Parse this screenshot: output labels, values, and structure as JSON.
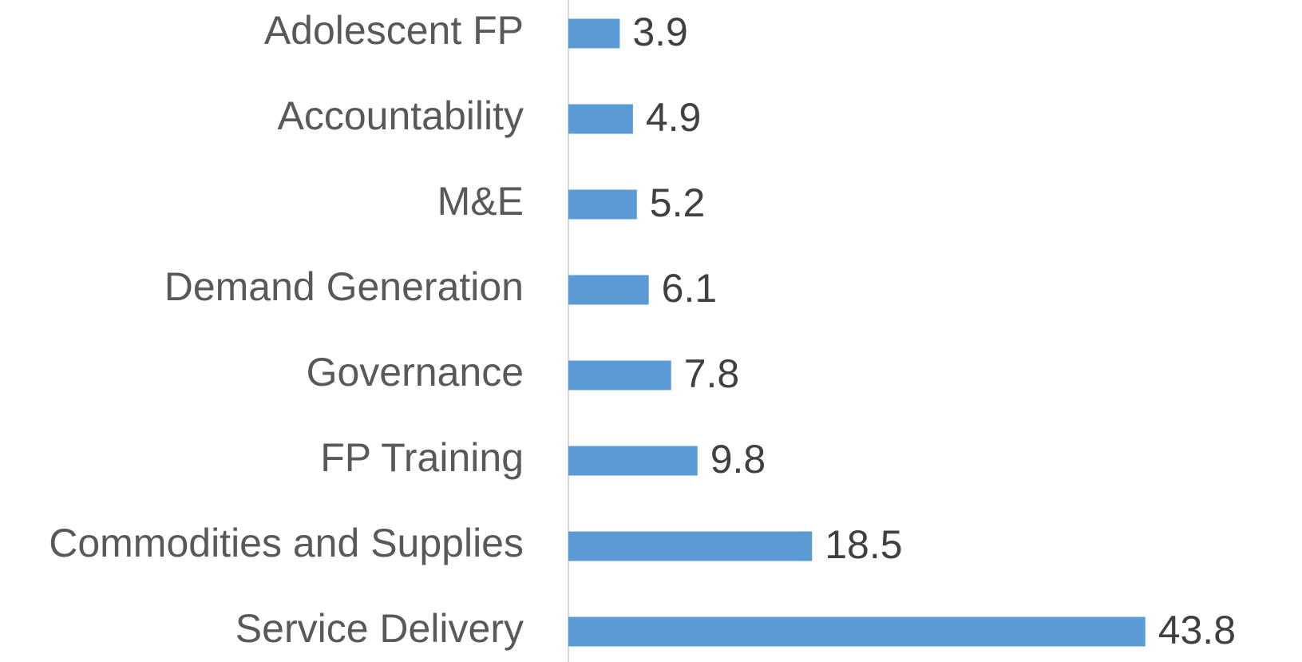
{
  "chart_data": {
    "type": "bar",
    "orientation": "horizontal",
    "categories": [
      "Adolescent FP",
      "Accountability",
      "M&E",
      "Demand Generation",
      "Governance",
      "FP Training",
      "Commodities and Supplies",
      "Service Delivery"
    ],
    "values": [
      3.9,
      4.9,
      5.2,
      6.1,
      7.8,
      9.8,
      18.5,
      43.8
    ],
    "color": "#5b9bd5"
  }
}
